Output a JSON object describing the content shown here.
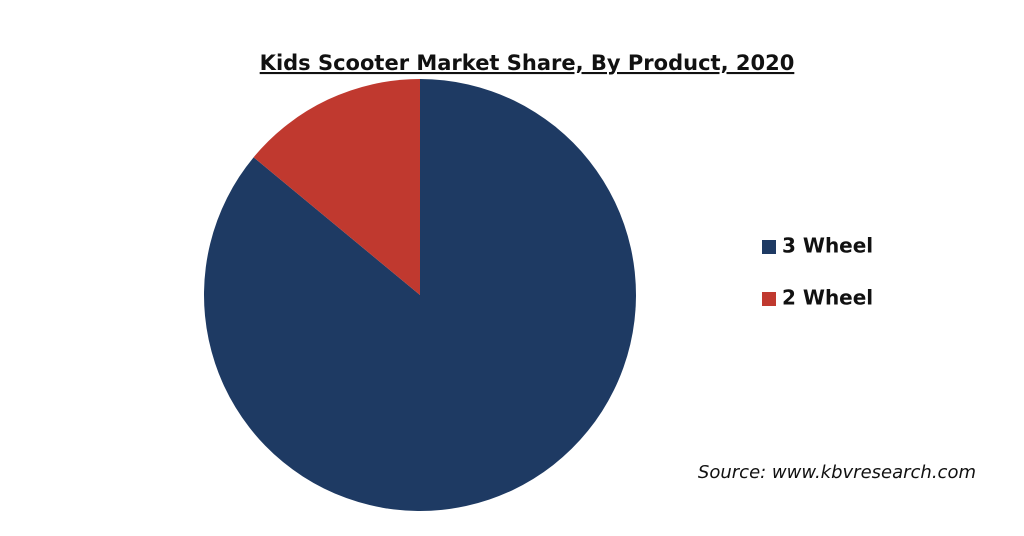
{
  "chart_data": {
    "type": "pie",
    "title": "Kids Scooter Market Share, By Product, 2020",
    "categories": [
      "3 Wheel",
      "2 Wheel"
    ],
    "values": [
      86,
      14
    ],
    "colors": [
      "#1e3a63",
      "#c0392f"
    ],
    "source": "Source: www.kbvresearch.com"
  }
}
